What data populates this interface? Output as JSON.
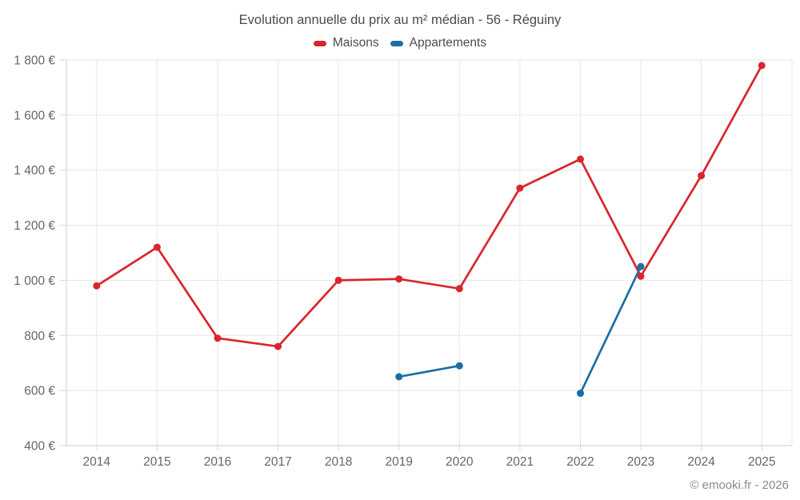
{
  "header": {
    "title": "Evolution annuelle du prix au m² médian - 56 - Réguiny"
  },
  "legend": {
    "items": [
      {
        "label": "Maisons",
        "color": "#d8262c"
      },
      {
        "label": "Appartements",
        "color": "#1c6ea4"
      }
    ]
  },
  "footer": {
    "credit": "© emooki.fr - 2026"
  },
  "chart_data": {
    "type": "line",
    "title": "Evolution annuelle du prix au m² médian - 56 - Réguiny",
    "categories": [
      "2014",
      "2015",
      "2016",
      "2017",
      "2018",
      "2019",
      "2020",
      "2021",
      "2022",
      "2023",
      "2024",
      "2025"
    ],
    "series": [
      {
        "name": "Maisons",
        "color": "#d8262c",
        "values": [
          980,
          1120,
          790,
          760,
          1000,
          1005,
          970,
          1335,
          1440,
          1015,
          1380,
          1780
        ]
      },
      {
        "name": "Appartements",
        "color": "#1c6ea4",
        "values": [
          null,
          null,
          null,
          null,
          null,
          650,
          690,
          null,
          590,
          1050,
          null,
          null
        ]
      }
    ],
    "xlabel": "",
    "ylabel": "",
    "ylim": [
      400,
      1800
    ],
    "ytick_step": 200,
    "ytick_labels": [
      "400 €",
      "600 €",
      "800 €",
      "1 000 €",
      "1 200 €",
      "1 400 €",
      "1 600 €",
      "1 800 €"
    ],
    "grid": true,
    "legend_position": "top",
    "currency_suffix": "€"
  }
}
